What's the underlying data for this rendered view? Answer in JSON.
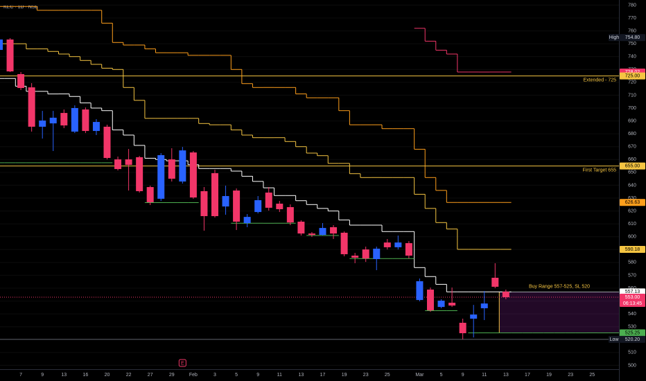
{
  "chart_data": {
    "type": "candlestick",
    "title": "KEC · 1D · NSE",
    "categories": [
      null,
      null,
      "7",
      null,
      "9",
      null,
      "13",
      null,
      "16",
      null,
      "20",
      null,
      "22",
      null,
      "27",
      null,
      "29",
      null,
      "Feb",
      null,
      "3",
      null,
      "5",
      null,
      "9",
      null,
      "11",
      null,
      "13",
      null,
      "17",
      null,
      "19",
      null,
      "23",
      null,
      "25",
      null,
      null,
      "Mar",
      null,
      "5",
      null,
      "9",
      null,
      "11",
      null,
      "13",
      null,
      "17",
      null,
      "19",
      null,
      "23",
      null,
      "25",
      null,
      null
    ],
    "open": [
      745.2,
      753.3,
      726.4,
      716.1,
      685.5,
      688.1,
      696.2,
      681.7,
      698.9,
      682.2,
      685.5,
      660.1,
      660.1,
      661.8,
      638.6,
      629.5,
      660.1,
      642.9,
      665.5,
      635.4,
      649.4,
      623.5,
      635.9,
      610.6,
      619.2,
      634.3,
      625.7,
      623,
      611.7,
      602.5,
      601.4,
      607.4,
      603.1,
      585.3,
      590.1,
      582.6,
      595.5,
      591.8,
      595,
      550.8,
      558.9,
      545.4,
      548.7,
      533.1,
      536.3,
      544.4,
      568.1,
      557.3,
      null,
      null,
      null,
      null,
      null,
      null,
      null,
      null,
      null,
      null
    ],
    "high": [
      754.8,
      754.4,
      728,
      719.4,
      697.8,
      697.8,
      698.9,
      702.1,
      700.5,
      691.4,
      687.1,
      662.3,
      668.2,
      662.8,
      639.7,
      665,
      668.8,
      669.8,
      666.6,
      638.6,
      652.1,
      639.7,
      637.5,
      617.6,
      631.6,
      638.6,
      627.8,
      625.1,
      612.8,
      603.6,
      610.6,
      609,
      604.1,
      587.4,
      592.3,
      592.3,
      598.2,
      600.9,
      596.6,
      567.5,
      560.5,
      551.4,
      560.5,
      536.3,
      547,
      557.8,
      579.4,
      558.9,
      null,
      null,
      null,
      null,
      null,
      null,
      null,
      null,
      null,
      null
    ],
    "low": [
      744.7,
      728,
      714,
      681.7,
      676.3,
      666.6,
      684.4,
      680.6,
      680.6,
      679,
      660.1,
      651.5,
      635.9,
      634.3,
      624.6,
      627.8,
      642.9,
      641.3,
      629.5,
      604.7,
      614.9,
      617.1,
      605.2,
      607.4,
      618.1,
      620.3,
      619.2,
      609,
      600.9,
      599.8,
      600.9,
      598.2,
      584.8,
      579.4,
      580.4,
      574,
      590.1,
      590.1,
      583.1,
      549.8,
      541.7,
      544.4,
      545.4,
      520.2,
      521.7,
      535.2,
      560,
      551.4,
      null,
      null,
      null,
      null,
      null,
      null,
      null,
      null,
      null,
      null
    ],
    "close": [
      753.3,
      728.5,
      715.6,
      685.5,
      690.3,
      692.5,
      686.5,
      700,
      682.2,
      689.2,
      661.2,
      652.6,
      655.8,
      635.4,
      626.8,
      663.4,
      645.1,
      667.1,
      630.5,
      616,
      616,
      631.6,
      611.7,
      615.4,
      628.4,
      622.5,
      621.4,
      611.1,
      602.5,
      601.4,
      606.8,
      602.5,
      586.4,
      583.7,
      583.1,
      590.7,
      591.8,
      595.5,
      585.3,
      565.4,
      542.8,
      550.3,
      546.5,
      525,
      539.5,
      548.1,
      561.1,
      553,
      null,
      null,
      null,
      null,
      null,
      null,
      null,
      null,
      null,
      null
    ],
    "up_color": "#2962ff",
    "down_color": "#f23669",
    "ylim": [
      497,
      784
    ],
    "yticks": [
      500,
      510,
      520,
      530,
      540,
      550,
      560,
      570,
      580,
      590,
      600,
      610,
      620,
      630,
      640,
      650,
      660,
      670,
      680,
      690,
      700,
      710,
      720,
      730,
      740,
      750,
      760,
      770,
      780
    ],
    "overlays": [
      {
        "color": "#ffffff",
        "values": [
          723,
          723,
          717,
          713,
          713,
          711,
          711,
          709,
          704,
          700,
          698,
          683,
          679,
          671,
          661,
          660,
          659,
          659,
          656,
          653,
          653,
          653,
          651,
          647,
          643,
          638,
          632,
          632,
          628,
          625,
          622,
          620,
          613,
          609,
          609,
          609,
          604,
          604,
          604,
          576,
          569,
          563,
          557.13,
          557.13,
          557.13,
          557.13,
          557.13,
          557.13,
          null,
          null,
          null,
          null,
          null,
          null,
          null,
          null,
          null,
          null
        ]
      },
      {
        "color": "#f5c542",
        "values": [
          750,
          750,
          750,
          746,
          746,
          744,
          742,
          740,
          737,
          734,
          731,
          730,
          716,
          706,
          692,
          692,
          692,
          692,
          692,
          688,
          687,
          687,
          683,
          679,
          677,
          677,
          677,
          674,
          670,
          665,
          663,
          657,
          657,
          649,
          646,
          646,
          646,
          646,
          646,
          633,
          622,
          611,
          606,
          590.18,
          590.18,
          590.18,
          590.18,
          590.18,
          null,
          null,
          null,
          null,
          null,
          null,
          null,
          null,
          null,
          null
        ]
      },
      {
        "color": "#ff9f1c",
        "values": [
          779,
          779,
          779,
          779,
          776,
          776,
          776,
          776,
          776,
          776,
          766,
          751,
          749,
          749,
          746,
          743,
          743,
          743,
          741,
          741,
          741,
          741,
          730,
          719,
          716,
          716,
          716,
          716,
          711,
          708,
          708,
          708,
          698,
          687,
          687,
          687,
          684,
          684,
          684,
          668,
          646,
          636,
          626.63,
          626.63,
          626.63,
          626.63,
          626.63,
          626.63,
          null,
          null,
          null,
          null,
          null,
          null,
          null,
          null,
          null,
          null
        ]
      },
      {
        "color": "#f23669",
        "values": [
          null,
          null,
          null,
          null,
          null,
          null,
          null,
          null,
          null,
          null,
          null,
          null,
          null,
          null,
          null,
          null,
          null,
          null,
          null,
          null,
          null,
          null,
          null,
          null,
          null,
          null,
          null,
          null,
          null,
          null,
          null,
          null,
          null,
          null,
          null,
          null,
          null,
          null,
          null,
          762,
          752,
          745,
          742,
          728.02,
          728.02,
          728.02,
          728.02,
          728.02,
          null,
          null,
          null,
          null,
          null,
          null,
          null,
          null,
          null,
          null
        ]
      },
      {
        "color": "#4caf50",
        "values": [
          657.5,
          657.5,
          657.5,
          657.5,
          657.5,
          657.5,
          657.5,
          657.5,
          657.5,
          657.5,
          657.5,
          null,
          null,
          null,
          626.5,
          626.5,
          626.5,
          626.5,
          626.5,
          null,
          null,
          null,
          610.5,
          610.5,
          610.5,
          610.5,
          610.5,
          610.5,
          null,
          601,
          601,
          601,
          null,
          583,
          583,
          583,
          583,
          583,
          583,
          null,
          542.5,
          542.5,
          542.5,
          null,
          525.25,
          525.25,
          525.25,
          525.25,
          525.25,
          525.25,
          525.25,
          525.25,
          525.25,
          525.25,
          525.25,
          525.25,
          525.25,
          525.25
        ]
      }
    ],
    "price_labels": [
      {
        "value": 754.8,
        "label": "754.80",
        "tag": "High",
        "bg": "#131722",
        "fg": "#d1d4dc"
      },
      {
        "value": 728.02,
        "label": "728.02",
        "bg": "#f23669",
        "fg": "#ffffff"
      },
      {
        "value": 725,
        "label": "725.00",
        "bg": "#f5c542",
        "fg": "#000000",
        "line": "solid",
        "line_color": "#f5c542",
        "note": "Extended - 725"
      },
      {
        "value": 655,
        "label": "655.00",
        "bg": "#f5c542",
        "fg": "#000000",
        "line": "solid",
        "line_color": "#f5c542",
        "note": "First Target 655"
      },
      {
        "value": 626.63,
        "label": "626.63",
        "bg": "#ff9f1c",
        "fg": "#000000"
      },
      {
        "value": 590.18,
        "label": "590.18",
        "bg": "#f5c542",
        "fg": "#000000"
      },
      {
        "value": 557.13,
        "label": "557.13",
        "bg": "#ffffff",
        "fg": "#000000"
      },
      {
        "value": 553,
        "label": "553.00",
        "sub": "06:13:45",
        "bg": "#f23669",
        "fg": "#ffffff",
        "line": "dotted",
        "line_color": "#f23669"
      },
      {
        "value": 525.25,
        "label": "525.25",
        "bg": "#4caf50",
        "fg": "#000000"
      },
      {
        "value": 520.2,
        "label": "520.20",
        "tag": "Low",
        "bg": "#131722",
        "fg": "#d1d4dc",
        "line": "solid",
        "line_color": "#5d606b"
      }
    ],
    "range_box": {
      "top": 557,
      "bottom": 525,
      "label": "Buy Range 557-525, SL 520",
      "color": "#9c27b0",
      "text_color": "#f5c542"
    },
    "earnings_marker": "E"
  }
}
